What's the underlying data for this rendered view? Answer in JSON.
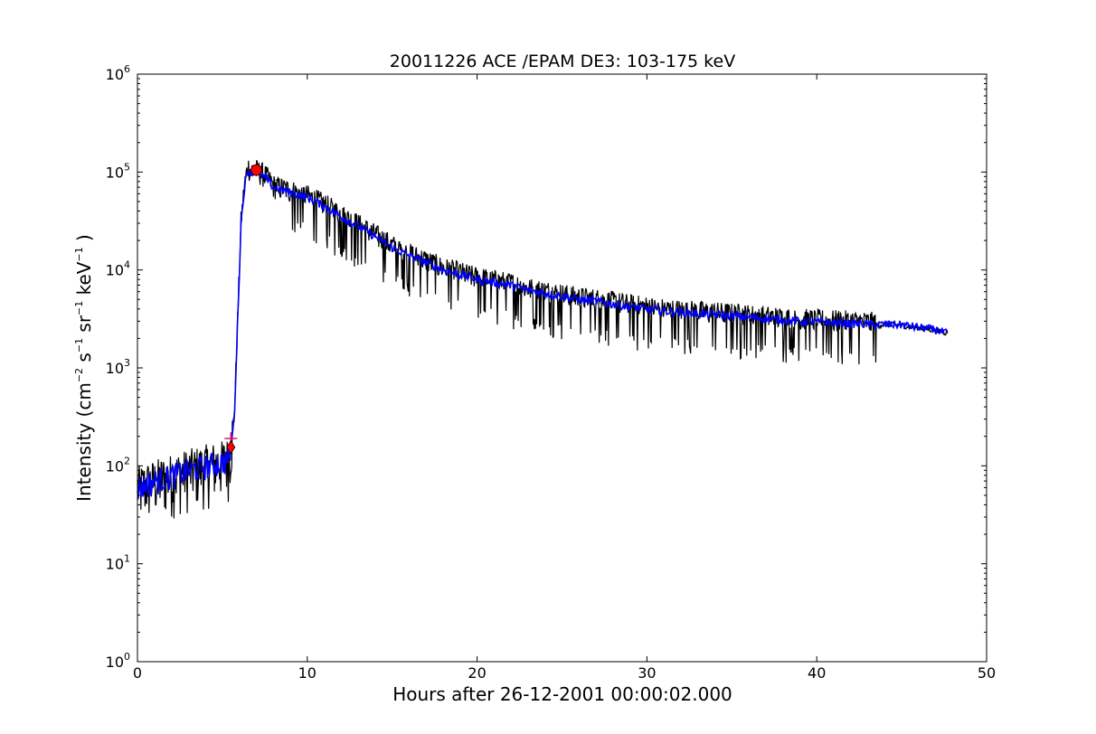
{
  "chart_data": {
    "type": "line",
    "title": "20011226 ACE /EPAM DE3: 103-175 keV",
    "xlabel": "Hours after 26-12-2001 00:00:02.000",
    "ylabel": "Intensity (cm⁻² s⁻¹ sr⁻¹ keV⁻¹)",
    "ylabel_parts": {
      "prefix": "Intensity (cm",
      "e1": "−2",
      "s": " s",
      "e2": "−1",
      "sr": " sr",
      "e3": "−1",
      "kev": " keV",
      "e4": "−1",
      "suffix": " )"
    },
    "xlim": [
      0,
      50
    ],
    "ylim": [
      1,
      1000000
    ],
    "yscale": "log",
    "grid": false,
    "x_ticks": [
      0,
      10,
      20,
      30,
      40,
      50
    ],
    "x_tick_labels": [
      "0",
      "10",
      "20",
      "30",
      "40",
      "50"
    ],
    "y_ticks": [
      1,
      10,
      100,
      1000,
      10000,
      100000,
      1000000
    ],
    "y_tick_labels": [
      {
        "base": "10",
        "exp": "0"
      },
      {
        "base": "10",
        "exp": "1"
      },
      {
        "base": "10",
        "exp": "2"
      },
      {
        "base": "10",
        "exp": "3"
      },
      {
        "base": "10",
        "exp": "4"
      },
      {
        "base": "10",
        "exp": "5"
      },
      {
        "base": "10",
        "exp": "6"
      }
    ],
    "series": [
      {
        "color": "#000000",
        "style": "raw",
        "x": [
          0.0,
          0.5,
          1.0,
          1.5,
          2.0,
          2.5,
          3.0,
          3.5,
          4.0,
          4.5,
          5.0,
          5.4,
          5.7,
          5.9,
          6.1,
          6.3,
          6.5,
          6.7,
          7.0,
          7.5,
          8.0,
          9.0,
          10.0,
          11.0,
          12.0,
          13.0,
          14.0,
          15.0,
          16.0,
          17.0,
          18.0,
          19.0,
          20.0,
          21.0,
          22.0,
          23.0,
          24.0,
          25.0,
          26.0,
          27.0,
          28.0,
          29.0,
          30.0,
          31.0,
          32.0,
          33.0,
          34.0,
          35.0,
          36.0,
          37.0,
          38.0,
          39.0,
          40.0,
          41.0,
          42.0,
          43.0,
          43.5,
          44.0,
          45.0,
          46.0,
          47.0,
          47.7
        ],
        "y": [
          60,
          65,
          70,
          75,
          80,
          85,
          90,
          95,
          100,
          105,
          110,
          120,
          300,
          3000,
          30000,
          70000,
          110000,
          100000,
          100000,
          90000,
          70000,
          62000,
          55000,
          45000,
          35000,
          28000,
          22000,
          17000,
          14000,
          12000,
          10000,
          9000,
          8000,
          7500,
          7000,
          6200,
          5800,
          5400,
          5000,
          4800,
          4500,
          4200,
          4000,
          3800,
          3700,
          3600,
          3500,
          3400,
          3300,
          3200,
          3100,
          3000,
          2950,
          2900,
          2850,
          2800,
          2750,
          2800,
          2750,
          2600,
          2450,
          2300
        ],
        "spread_low": 0.45,
        "spread_high": 1.35
      },
      {
        "color": "#0000ff",
        "style": "smoothed",
        "x": [
          0.0,
          0.5,
          1.0,
          1.5,
          2.0,
          2.5,
          3.0,
          3.5,
          4.0,
          4.5,
          5.0,
          5.4,
          5.7,
          5.9,
          6.1,
          6.3,
          6.5,
          6.7,
          7.0,
          7.5,
          8.0,
          9.0,
          10.0,
          11.0,
          12.0,
          13.0,
          14.0,
          15.0,
          16.0,
          17.0,
          18.0,
          19.0,
          20.0,
          21.0,
          22.0,
          23.0,
          24.0,
          25.0,
          26.0,
          27.0,
          28.0,
          29.0,
          30.0,
          31.0,
          32.0,
          33.0,
          34.0,
          35.0,
          36.0,
          37.0,
          38.0,
          39.0,
          40.0,
          41.0,
          42.0,
          43.0,
          43.5,
          44.0,
          45.0,
          46.0,
          47.0,
          47.7
        ],
        "y": [
          60,
          65,
          70,
          75,
          80,
          85,
          90,
          95,
          100,
          105,
          110,
          120,
          300,
          3000,
          30000,
          70000,
          105000,
          100000,
          100000,
          88000,
          70000,
          62000,
          55000,
          45000,
          35000,
          28000,
          22000,
          17000,
          14000,
          12000,
          10000,
          9000,
          8000,
          7500,
          7000,
          6200,
          5800,
          5400,
          5000,
          4800,
          4500,
          4200,
          4000,
          3800,
          3700,
          3600,
          3500,
          3400,
          3300,
          3200,
          3100,
          3000,
          2950,
          2900,
          2850,
          2800,
          2750,
          2800,
          2750,
          2600,
          2450,
          2250
        ]
      }
    ],
    "markers": [
      {
        "type": "plus",
        "x": 5.5,
        "y": 190,
        "color": "#e8175d"
      },
      {
        "type": "diamond",
        "x": 5.5,
        "y": 155,
        "color": "#ff0000"
      },
      {
        "type": "circle",
        "x": 7.0,
        "y": 105000,
        "color": "#ff0000"
      }
    ]
  }
}
